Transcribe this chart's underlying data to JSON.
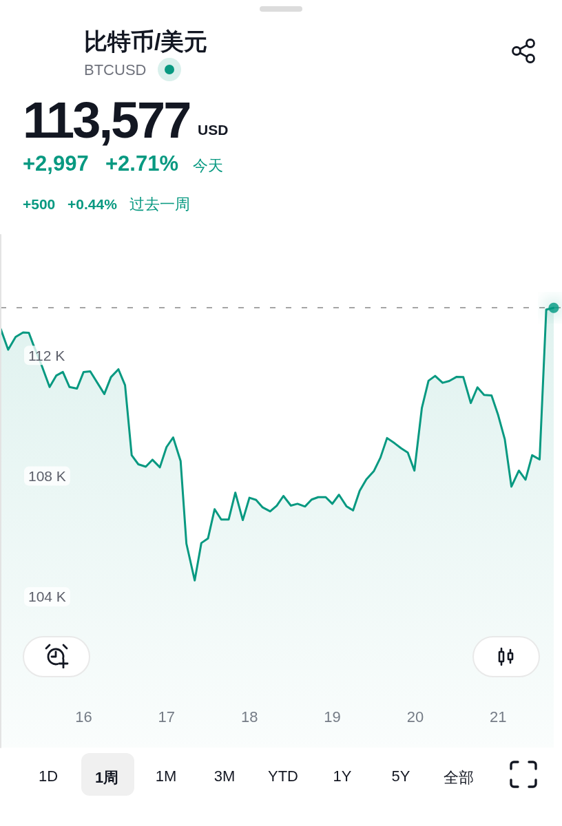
{
  "chart_data": {
    "type": "area",
    "title": "比特币/美元",
    "subtitle": "BTCUSD",
    "x": [
      15.0,
      15.09,
      15.18,
      15.27,
      15.34,
      15.39,
      15.49,
      15.59,
      15.67,
      15.75,
      15.83,
      15.92,
      16.0,
      16.08,
      16.25,
      16.33,
      16.42,
      16.5,
      16.58,
      16.66,
      16.75,
      16.83,
      16.92,
      17.0,
      17.08,
      17.17,
      17.24,
      17.34,
      17.42,
      17.5,
      17.58,
      17.66,
      17.75,
      17.83,
      17.92,
      18.0,
      18.08,
      18.16,
      18.25,
      18.33,
      18.41,
      18.5,
      18.58,
      18.67,
      18.75,
      18.83,
      18.92,
      19.0,
      19.08,
      19.17,
      19.25,
      19.33,
      19.41,
      19.5,
      19.58,
      19.66,
      19.75,
      19.83,
      19.91,
      19.99,
      20.08,
      20.16,
      20.24,
      20.33,
      20.41,
      20.5,
      20.58,
      20.67,
      20.75,
      20.83,
      20.92,
      21.0,
      21.08,
      21.16,
      21.25,
      21.33,
      21.41,
      21.5,
      21.58,
      21.67
    ],
    "series": [
      {
        "color": "#089981",
        "values": [
          112880,
          112190,
          112610,
          112760,
          112750,
          112380,
          111700,
          110950,
          111330,
          111450,
          110950,
          110900,
          111450,
          111470,
          110720,
          111280,
          111540,
          111010,
          108690,
          108390,
          108310,
          108540,
          108290,
          108960,
          109280,
          108500,
          105760,
          104540,
          105780,
          105930,
          106900,
          106560,
          106560,
          107450,
          106540,
          107280,
          107210,
          106960,
          106830,
          107020,
          107340,
          107020,
          107080,
          106990,
          107220,
          107300,
          107300,
          107080,
          107380,
          107000,
          106860,
          107510,
          107890,
          108160,
          108610,
          109260,
          109090,
          108920,
          108780,
          108180,
          110260,
          111160,
          111320,
          111090,
          111150,
          111290,
          111280,
          110420,
          110940,
          110690,
          110670,
          110020,
          109220,
          107650,
          108180,
          107880,
          108690,
          108550,
          113520,
          113577
        ]
      },
      {
        "type": "scatter",
        "color": "#089981",
        "x": [
          21.67
        ],
        "values": [
          113577
        ]
      }
    ],
    "xlim": [
      15,
      21.77
    ],
    "xticks": [
      16,
      17,
      18,
      19,
      20,
      21
    ],
    "ylim": [
      99000,
      116000
    ],
    "yticks": [
      {
        "value": 104000,
        "label": "104 K"
      },
      {
        "value": 108000,
        "label": "108 K"
      },
      {
        "value": 112000,
        "label": "112 K"
      }
    ],
    "ref_lines": [
      {
        "axis": "y",
        "value": 113577,
        "line_style": "dashed",
        "color": "#888888"
      }
    ],
    "grid": false,
    "line_style": "solid",
    "annotations": [
      "113,577",
      "USD",
      "+2,997",
      "+2.71%",
      "今天",
      "+500",
      "+0.44%",
      "过去一周",
      "1D",
      "1周",
      "1M",
      "3M",
      "YTD",
      "1Y",
      "5Y",
      "全部"
    ]
  }
}
